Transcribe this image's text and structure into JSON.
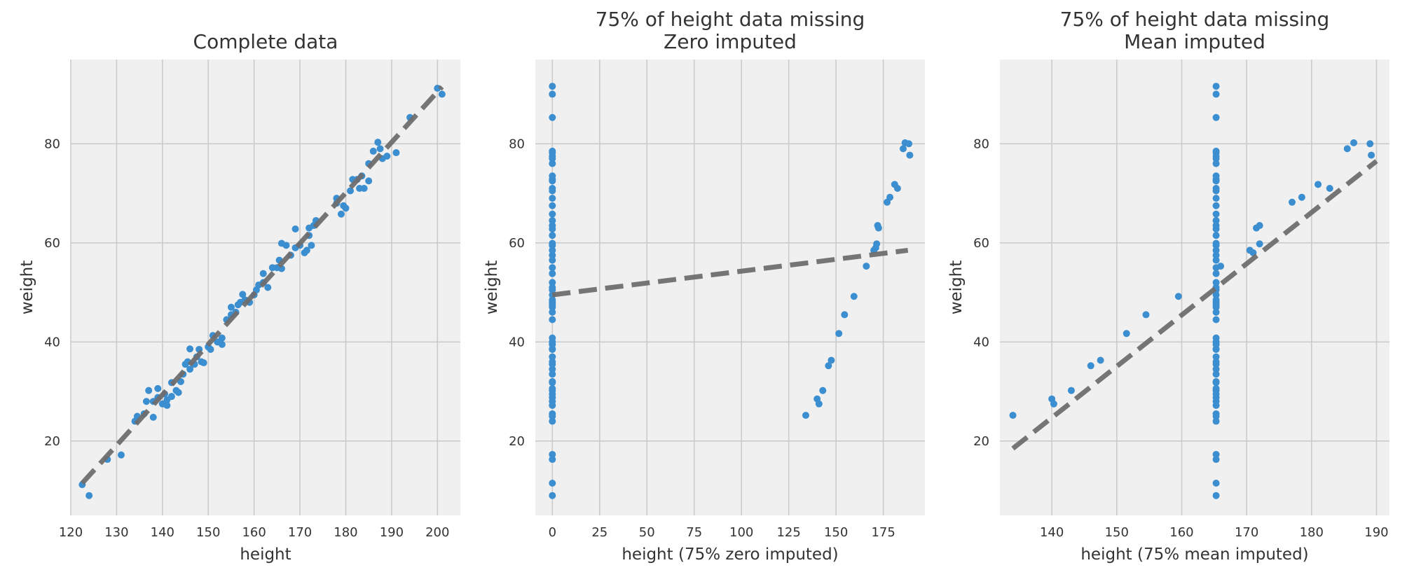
{
  "chart_data": [
    {
      "type": "scatter",
      "title": [
        "Complete data"
      ],
      "xlabel": "height",
      "ylabel": "weight",
      "xlim": [
        120,
        205
      ],
      "ylim": [
        5,
        97
      ],
      "xticks": [
        120,
        130,
        140,
        150,
        160,
        170,
        180,
        190,
        200
      ],
      "yticks": [
        20,
        40,
        60,
        80
      ],
      "grid": true,
      "point_color": "#3b8ecf",
      "fit_color": "#6e6e6e",
      "fit_line": {
        "x": [
          122.5,
          201
        ],
        "y": [
          11.5,
          91.5
        ]
      },
      "points": [
        [
          122.5,
          11.2
        ],
        [
          124,
          9
        ],
        [
          128,
          16.3
        ],
        [
          131,
          17.2
        ],
        [
          134,
          24
        ],
        [
          134.5,
          25
        ],
        [
          136,
          25.5
        ],
        [
          136.5,
          28
        ],
        [
          137,
          30.2
        ],
        [
          138,
          28
        ],
        [
          138,
          24.8
        ],
        [
          139,
          30.6
        ],
        [
          139,
          28.8
        ],
        [
          140,
          27.5
        ],
        [
          140.5,
          29.5
        ],
        [
          141,
          28.3
        ],
        [
          141,
          27.2
        ],
        [
          142,
          31.8
        ],
        [
          142,
          29
        ],
        [
          143,
          30.2
        ],
        [
          143.5,
          29.8
        ],
        [
          144,
          32
        ],
        [
          144.5,
          33.5
        ],
        [
          145,
          35.5
        ],
        [
          145.5,
          36
        ],
        [
          146,
          34.5
        ],
        [
          146,
          38.6
        ],
        [
          147,
          35.5
        ],
        [
          147.5,
          37
        ],
        [
          148,
          38.5
        ],
        [
          148.5,
          36
        ],
        [
          149,
          35.8
        ],
        [
          150,
          39
        ],
        [
          150.5,
          38.5
        ],
        [
          151,
          41.3
        ],
        [
          152,
          40
        ],
        [
          153,
          39.5
        ],
        [
          153,
          40.8
        ],
        [
          154,
          44.5
        ],
        [
          155,
          45.5
        ],
        [
          155,
          47
        ],
        [
          156,
          46
        ],
        [
          156.5,
          47.5
        ],
        [
          157,
          48
        ],
        [
          157.5,
          49.6
        ],
        [
          158,
          48.5
        ],
        [
          159,
          48
        ],
        [
          160,
          49.5
        ],
        [
          160.5,
          50.5
        ],
        [
          161,
          51.5
        ],
        [
          162,
          52
        ],
        [
          162,
          53.8
        ],
        [
          163,
          51
        ],
        [
          164,
          55
        ],
        [
          165,
          55
        ],
        [
          165.5,
          56.5
        ],
        [
          166,
          54.8
        ],
        [
          166,
          59.9
        ],
        [
          167,
          59.5
        ],
        [
          168,
          57.5
        ],
        [
          169,
          59
        ],
        [
          169,
          62.8
        ],
        [
          170,
          59.5
        ],
        [
          171,
          58
        ],
        [
          171.5,
          58.5
        ],
        [
          172,
          61.5
        ],
        [
          172,
          63
        ],
        [
          172.5,
          59.5
        ],
        [
          173,
          63.5
        ],
        [
          173.5,
          64.5
        ],
        [
          178,
          68
        ],
        [
          178,
          69
        ],
        [
          179,
          65.8
        ],
        [
          179.5,
          67.5
        ],
        [
          180,
          67
        ],
        [
          181,
          70.5
        ],
        [
          181.5,
          72.8
        ],
        [
          182.5,
          72.8
        ],
        [
          183,
          71
        ],
        [
          183.5,
          73.5
        ],
        [
          184,
          71
        ],
        [
          185,
          72.5
        ],
        [
          185,
          76
        ],
        [
          186,
          78.5
        ],
        [
          187,
          80.3
        ],
        [
          187.5,
          79
        ],
        [
          188,
          77
        ],
        [
          189,
          77.5
        ],
        [
          191,
          78.2
        ],
        [
          194,
          85.3
        ],
        [
          200,
          91.2
        ],
        [
          201,
          90
        ]
      ]
    },
    {
      "type": "scatter",
      "title": [
        "75% of height data missing",
        "Zero imputed"
      ],
      "xlabel": "height (75% zero imputed)",
      "ylabel": "weight",
      "xlim": [
        -9,
        197
      ],
      "ylim": [
        5,
        97
      ],
      "xticks": [
        0,
        25,
        50,
        75,
        100,
        125,
        150,
        175
      ],
      "yticks": [
        20,
        40,
        60,
        80
      ],
      "grid": true,
      "point_color": "#3b8ecf",
      "fit_color": "#6e6e6e",
      "fit_line": {
        "x": [
          0,
          188
        ],
        "y": [
          49.5,
          58.5
        ]
      },
      "points": [
        [
          0,
          9
        ],
        [
          0,
          11.5
        ],
        [
          0,
          16.3
        ],
        [
          0,
          17.3
        ],
        [
          0,
          24
        ],
        [
          0,
          25
        ],
        [
          0,
          25.5
        ],
        [
          0,
          27.2
        ],
        [
          0,
          28
        ],
        [
          0,
          28.8
        ],
        [
          0,
          29.5
        ],
        [
          0,
          30.2
        ],
        [
          0,
          30.6
        ],
        [
          0,
          31.8
        ],
        [
          0,
          32
        ],
        [
          0,
          33.5
        ],
        [
          0,
          34.5
        ],
        [
          0,
          35.5
        ],
        [
          0,
          36
        ],
        [
          0,
          37
        ],
        [
          0,
          38.5
        ],
        [
          0,
          38.6
        ],
        [
          0,
          39.5
        ],
        [
          0,
          40
        ],
        [
          0,
          40.8
        ],
        [
          0,
          44.5
        ],
        [
          0,
          46
        ],
        [
          0,
          47
        ],
        [
          0,
          47.5
        ],
        [
          0,
          48
        ],
        [
          0,
          48.5
        ],
        [
          0,
          49.5
        ],
        [
          0,
          50.5
        ],
        [
          0,
          51
        ],
        [
          0,
          52
        ],
        [
          0,
          53.8
        ],
        [
          0,
          55
        ],
        [
          0,
          56.5
        ],
        [
          0,
          57.5
        ],
        [
          0,
          58.5
        ],
        [
          0,
          59.5
        ],
        [
          0,
          59.9
        ],
        [
          0,
          61.5
        ],
        [
          0,
          62.8
        ],
        [
          0,
          63.5
        ],
        [
          0,
          64.5
        ],
        [
          0,
          65.8
        ],
        [
          0,
          67.5
        ],
        [
          0,
          69
        ],
        [
          0,
          70.5
        ],
        [
          0,
          71
        ],
        [
          0,
          72.5
        ],
        [
          0,
          72.8
        ],
        [
          0,
          73.5
        ],
        [
          0,
          76
        ],
        [
          0,
          77
        ],
        [
          0,
          77.5
        ],
        [
          0,
          78.2
        ],
        [
          0,
          78.5
        ],
        [
          0,
          85.3
        ],
        [
          0,
          90
        ],
        [
          0,
          91.6
        ],
        [
          134,
          25.2
        ],
        [
          140,
          28.5
        ],
        [
          141,
          27.5
        ],
        [
          143,
          30.2
        ],
        [
          146,
          35.2
        ],
        [
          147.5,
          36.3
        ],
        [
          151.5,
          41.7
        ],
        [
          154.5,
          45.5
        ],
        [
          159.5,
          49.2
        ],
        [
          166,
          55.3
        ],
        [
          170,
          58.5
        ],
        [
          171,
          59
        ],
        [
          171.5,
          59.8
        ],
        [
          172.5,
          63
        ],
        [
          172,
          63.5
        ],
        [
          177,
          68.2
        ],
        [
          178.5,
          69.2
        ],
        [
          181,
          71.8
        ],
        [
          182.5,
          71
        ],
        [
          185.5,
          79
        ],
        [
          186.5,
          80.2
        ],
        [
          188.5,
          80
        ],
        [
          189,
          77.7
        ]
      ]
    },
    {
      "type": "scatter",
      "title": [
        "75% of height data missing",
        "Mean imputed"
      ],
      "xlabel": "height (75% mean imputed)",
      "ylabel": "weight",
      "xlim": [
        132,
        192
      ],
      "ylim": [
        5,
        97
      ],
      "xticks": [
        140,
        150,
        160,
        170,
        180,
        190
      ],
      "yticks": [
        20,
        40,
        60,
        80
      ],
      "grid": true,
      "point_color": "#3b8ecf",
      "fit_color": "#6e6e6e",
      "fit_line": {
        "x": [
          134,
          190
        ],
        "y": [
          18.5,
          76.5
        ]
      },
      "points": [
        [
          165.3,
          9
        ],
        [
          165.3,
          11.5
        ],
        [
          165.3,
          16.3
        ],
        [
          165.3,
          17.3
        ],
        [
          165.3,
          24
        ],
        [
          165.3,
          25
        ],
        [
          165.3,
          25.5
        ],
        [
          165.3,
          27.2
        ],
        [
          165.3,
          28
        ],
        [
          165.3,
          28.8
        ],
        [
          165.3,
          29.5
        ],
        [
          165.3,
          30.2
        ],
        [
          165.3,
          30.6
        ],
        [
          165.3,
          31.8
        ],
        [
          165.3,
          32
        ],
        [
          165.3,
          33.5
        ],
        [
          165.3,
          34.5
        ],
        [
          165.3,
          35.5
        ],
        [
          165.3,
          36
        ],
        [
          165.3,
          37
        ],
        [
          165.3,
          38.5
        ],
        [
          165.3,
          38.6
        ],
        [
          165.3,
          39.5
        ],
        [
          165.3,
          40
        ],
        [
          165.3,
          40.8
        ],
        [
          165.3,
          44.5
        ],
        [
          165.3,
          46
        ],
        [
          165.3,
          47
        ],
        [
          165.3,
          47.5
        ],
        [
          165.3,
          48
        ],
        [
          165.3,
          48.5
        ],
        [
          165.3,
          49.5
        ],
        [
          165.3,
          50.5
        ],
        [
          165.3,
          51
        ],
        [
          165.3,
          52
        ],
        [
          165.3,
          53.8
        ],
        [
          165.3,
          55
        ],
        [
          165.3,
          56.5
        ],
        [
          165.3,
          57.5
        ],
        [
          165.3,
          58.5
        ],
        [
          165.3,
          59.5
        ],
        [
          165.3,
          59.9
        ],
        [
          165.3,
          61.5
        ],
        [
          165.3,
          62.8
        ],
        [
          165.3,
          63.5
        ],
        [
          165.3,
          64.5
        ],
        [
          165.3,
          65.8
        ],
        [
          165.3,
          67.5
        ],
        [
          165.3,
          69
        ],
        [
          165.3,
          70.5
        ],
        [
          165.3,
          71
        ],
        [
          165.3,
          72.5
        ],
        [
          165.3,
          72.8
        ],
        [
          165.3,
          73.5
        ],
        [
          165.3,
          76
        ],
        [
          165.3,
          77
        ],
        [
          165.3,
          77.5
        ],
        [
          165.3,
          78.2
        ],
        [
          165.3,
          78.5
        ],
        [
          165.3,
          85.3
        ],
        [
          165.3,
          90
        ],
        [
          165.3,
          91.6
        ],
        [
          134,
          25.2
        ],
        [
          140,
          28.5
        ],
        [
          140.3,
          27.5
        ],
        [
          143,
          30.2
        ],
        [
          146,
          35.2
        ],
        [
          147.5,
          36.3
        ],
        [
          151.5,
          41.7
        ],
        [
          154.5,
          45.5
        ],
        [
          159.5,
          49.2
        ],
        [
          166,
          55.3
        ],
        [
          170.5,
          58.5
        ],
        [
          171,
          58
        ],
        [
          172,
          59.8
        ],
        [
          171.5,
          63
        ],
        [
          172,
          63.5
        ],
        [
          177,
          68.2
        ],
        [
          178.5,
          69.2
        ],
        [
          181,
          71.8
        ],
        [
          182.8,
          71
        ],
        [
          185.5,
          79
        ],
        [
          186.5,
          80.2
        ],
        [
          189,
          80
        ],
        [
          189.2,
          77.7
        ]
      ]
    }
  ]
}
